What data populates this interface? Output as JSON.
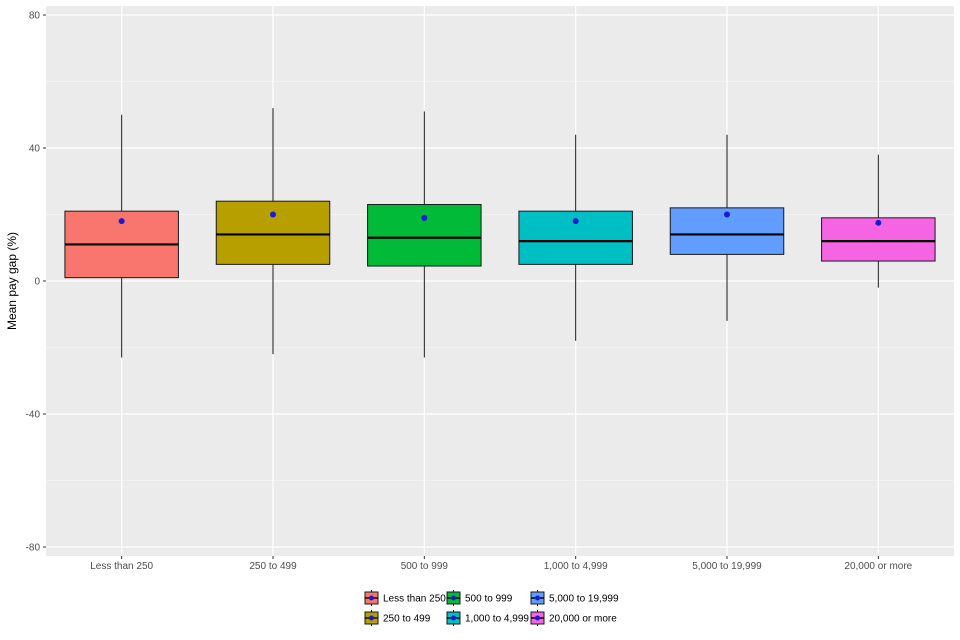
{
  "chart_data": {
    "type": "boxplot",
    "title": "",
    "xlabel": "",
    "ylabel": "Mean pay gap (%)",
    "ylim": [
      -80,
      80
    ],
    "y_ticks": [
      -80,
      -40,
      0,
      40,
      80
    ],
    "grid": true,
    "legend_position": "bottom",
    "categories": [
      "Less than 250",
      "250 to 499",
      "500 to 999",
      "1,000 to 4,999",
      "5,000 to 19,999",
      "20,000 or more"
    ],
    "series": [
      {
        "name": "Less than 250",
        "color": "#F8766D",
        "whisker_low": -23,
        "q1": 1,
        "median": 11,
        "q3": 21,
        "whisker_high": 50,
        "mean": 18
      },
      {
        "name": "250 to 499",
        "color": "#B79F00",
        "whisker_low": -22,
        "q1": 5,
        "median": 14,
        "q3": 24,
        "whisker_high": 52,
        "mean": 20
      },
      {
        "name": "500 to 999",
        "color": "#00BA38",
        "whisker_low": -23,
        "q1": 4.5,
        "median": 13,
        "q3": 23,
        "whisker_high": 51,
        "mean": 19
      },
      {
        "name": "1,000 to 4,999",
        "color": "#00BFC4",
        "whisker_low": -18,
        "q1": 5,
        "median": 12,
        "q3": 21,
        "whisker_high": 44,
        "mean": 18
      },
      {
        "name": "5,000 to 19,999",
        "color": "#619CFF",
        "whisker_low": -12,
        "q1": 8,
        "median": 14,
        "q3": 22,
        "whisker_high": 44,
        "mean": 20
      },
      {
        "name": "20,000 or more",
        "color": "#F564E3",
        "whisker_low": -2,
        "q1": 6,
        "median": 12,
        "q3": 19,
        "whisker_high": 38,
        "mean": 17.5
      }
    ],
    "mean_marker_color": "#1a1adb",
    "legend_layout": [
      [
        "Less than 250",
        "500 to 999",
        "5,000 to 19,999"
      ],
      [
        "250 to 499",
        "1,000 to 4,999",
        "20,000 or more"
      ]
    ]
  }
}
